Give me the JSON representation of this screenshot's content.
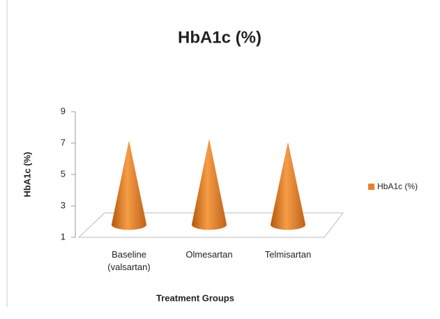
{
  "chart_data": {
    "type": "cone",
    "title": "HbA1c (%)",
    "x_label": "Treatment Groups",
    "y_label": "HbA1c (%)",
    "categories": [
      "Baseline (valsartan)",
      "Olmesartan",
      "Telmisartan"
    ],
    "series": [
      {
        "name": "HbA1c (%)",
        "color": "#e8822e",
        "values": [
          7.1,
          7.2,
          7.0
        ]
      }
    ],
    "ylim": [
      1,
      9
    ],
    "yticks": [
      1,
      3,
      5,
      7,
      9
    ],
    "legend": "right"
  }
}
